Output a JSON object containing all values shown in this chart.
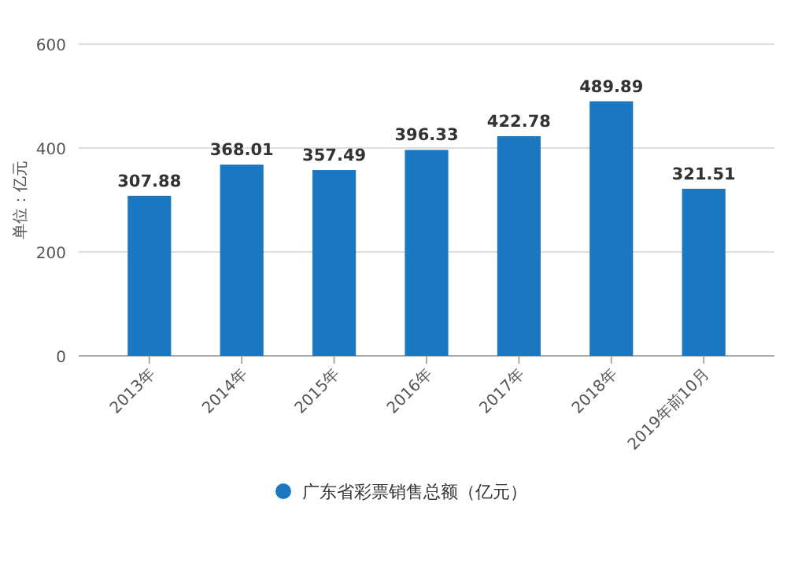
{
  "chart_data": {
    "type": "bar",
    "ylabel": "单位：亿元",
    "categories": [
      "2013年",
      "2014年",
      "2015年",
      "2016年",
      "2017年",
      "2018年",
      "2019年前10月"
    ],
    "series": [
      {
        "name": "广东省彩票销售总额（亿元）",
        "color": "#1a78c2",
        "values": [
          307.88,
          368.01,
          357.49,
          396.33,
          422.78,
          489.89,
          321.51
        ]
      }
    ],
    "ylim": [
      0,
      600
    ],
    "yticks": [
      0,
      200,
      400,
      600
    ],
    "grid": "y",
    "data_labels": true,
    "legend": "bottom"
  }
}
